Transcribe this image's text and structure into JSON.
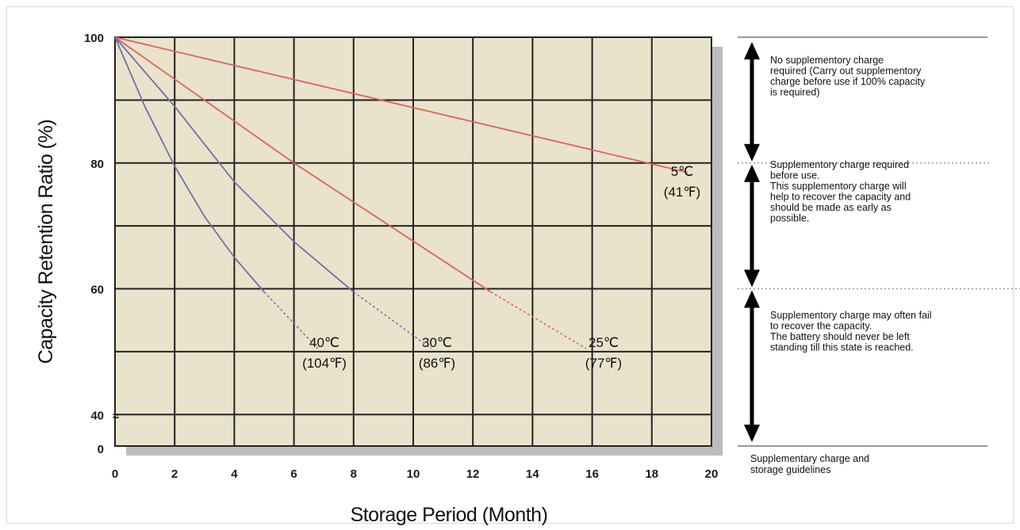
{
  "chart_data": {
    "type": "line",
    "xlabel": "Storage Period (Month)",
    "ylabel": "Capacity Retention Ratio (%)",
    "xlim": [
      0,
      20
    ],
    "ylim_display": [
      35,
      100
    ],
    "x_ticks": [
      "0",
      "2",
      "4",
      "6",
      "8",
      "10",
      "12",
      "14",
      "16",
      "18",
      "20"
    ],
    "y_ticks": [
      {
        "value": 100,
        "label": "100"
      },
      {
        "value": 80,
        "label": "80"
      },
      {
        "value": 60,
        "label": "60"
      },
      {
        "value": 40,
        "label": "40"
      }
    ],
    "y_zero_label": "0",
    "axis_break_symbol": "≈",
    "grid": true,
    "plot_background": "#e9e3cc",
    "series": [
      {
        "label_temp": "5℃",
        "label_f": "(41℉)",
        "color": "#e06060",
        "points": [
          [
            0,
            100
          ],
          [
            19.2,
            78.5
          ]
        ],
        "dashed_points": []
      },
      {
        "label_temp": "25℃",
        "label_f": "(77℉)",
        "color": "#e06060",
        "points": [
          [
            0,
            100
          ],
          [
            6,
            80
          ],
          [
            12.6,
            59.5
          ]
        ],
        "dashed_points": [
          [
            12.6,
            59.5
          ],
          [
            15.8,
            50.5
          ]
        ]
      },
      {
        "label_temp": "30℃",
        "label_f": "(86℉)",
        "color": "#7070a8",
        "points": [
          [
            0,
            100
          ],
          [
            2,
            89
          ],
          [
            4,
            77
          ],
          [
            6,
            67.5
          ],
          [
            8,
            59.5
          ]
        ],
        "dashed_points": [
          [
            8,
            59.5
          ],
          [
            10.6,
            50.5
          ]
        ]
      },
      {
        "label_temp": "40℃",
        "label_f": "(104℉)",
        "color": "#7070a8",
        "points": [
          [
            0,
            100
          ],
          [
            1,
            89
          ],
          [
            2,
            79.5
          ],
          [
            3,
            71.5
          ],
          [
            4,
            65
          ],
          [
            5,
            59.5
          ]
        ],
        "dashed_points": [
          [
            5,
            59.5
          ],
          [
            6.8,
            50.5
          ]
        ]
      }
    ],
    "annotations": [
      {
        "range": [
          80,
          100
        ],
        "lines": [
          "No supplementory charge",
          "required (Carry out supplementory",
          "charge before use if 100% capacity",
          "is required)"
        ]
      },
      {
        "range": [
          60,
          80
        ],
        "lines": [
          "Supplementory charge required",
          "before use.",
          "This supplementory charge will",
          "help to recover the capacity and",
          "should be made as early as",
          "possible."
        ]
      },
      {
        "range": [
          35,
          60
        ],
        "lines": [
          "Supplementory charge may often fail",
          "to recover the capacity.",
          "The battery should never be left",
          "standing till this state is reached."
        ]
      }
    ],
    "guidelines_caption": [
      "Supplementary charge and",
      "storage guidelines"
    ]
  }
}
